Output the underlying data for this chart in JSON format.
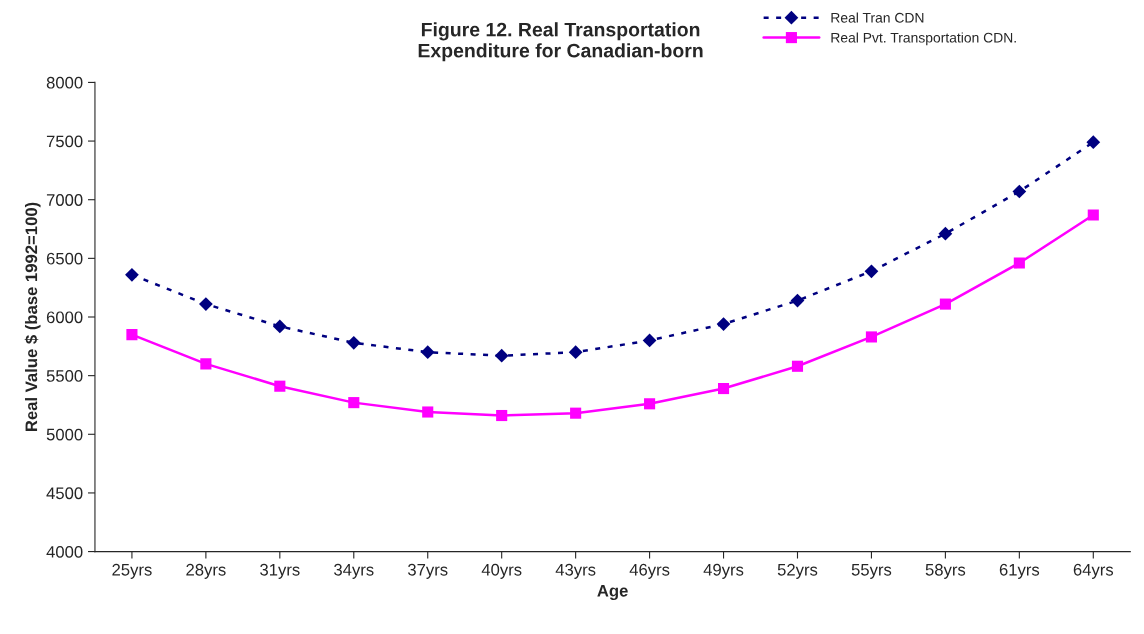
{
  "chart_data": {
    "type": "line",
    "title": "Figure 12. Real Transportation\nExpenditure for Canadian-born",
    "xlabel": "Age",
    "ylabel": "Real Value $ (base 1992=100)",
    "categories": [
      "25yrs",
      "28yrs",
      "31yrs",
      "34yrs",
      "37yrs",
      "40yrs",
      "43yrs",
      "46yrs",
      "49yrs",
      "52yrs",
      "55yrs",
      "58yrs",
      "61yrs",
      "64yrs"
    ],
    "series": [
      {
        "name": "Real Tran CDN",
        "color": "#000080",
        "marker": "diamond",
        "line_style": "dotted",
        "values": [
          6360,
          6110,
          5920,
          5780,
          5700,
          5670,
          5700,
          5800,
          5940,
          6140,
          6390,
          6710,
          7070,
          7490
        ]
      },
      {
        "name": "Real Pvt. Transportation CDN.",
        "color": "#ff00ff",
        "marker": "square",
        "line_style": "solid",
        "values": [
          5850,
          5600,
          5410,
          5270,
          5190,
          5160,
          5180,
          5260,
          5390,
          5580,
          5830,
          6110,
          6460,
          6870
        ]
      }
    ],
    "ylim": [
      4000,
      8000
    ],
    "yticks": [
      4000,
      4500,
      5000,
      5500,
      6000,
      6500,
      7000,
      7500,
      8000
    ],
    "grid": false,
    "legend": "top right"
  }
}
